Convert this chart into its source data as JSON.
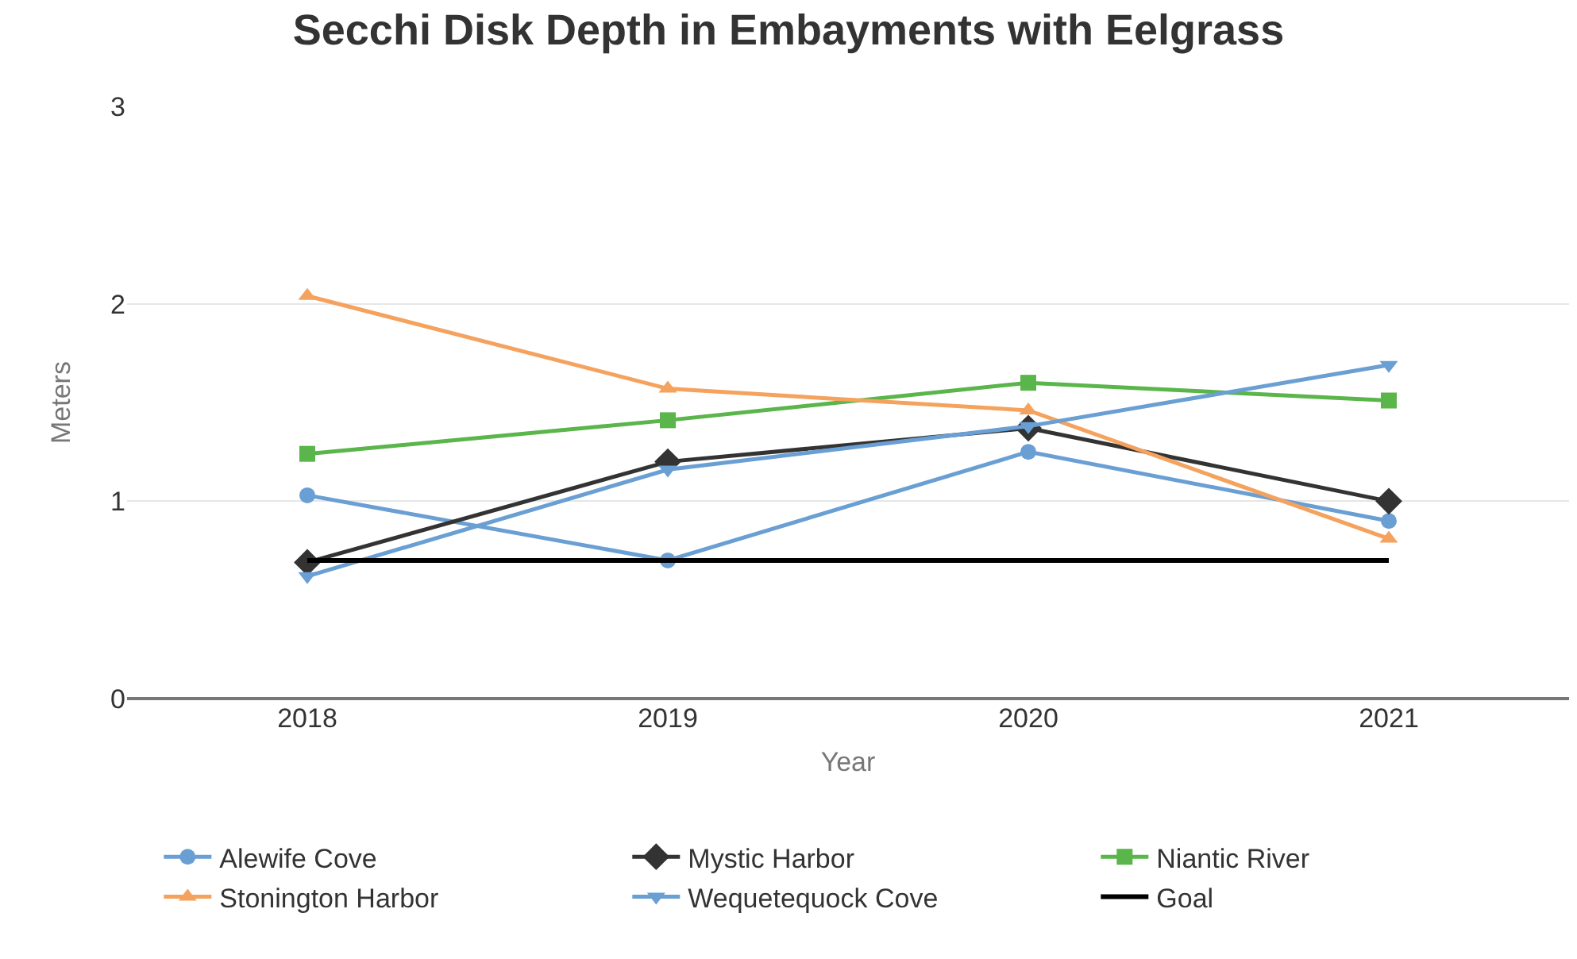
{
  "chart_data": {
    "type": "line",
    "title": "Secchi Disk Depth in Embayments with Eelgrass",
    "xlabel": "Year",
    "ylabel": "Meters",
    "categories": [
      "2018",
      "2019",
      "2020",
      "2021"
    ],
    "series": [
      {
        "name": "Alewife Cove",
        "color": "#6a9fd4",
        "marker": "circle",
        "values": [
          1.03,
          0.7,
          1.25,
          0.9
        ]
      },
      {
        "name": "Mystic Harbor",
        "color": "#333333",
        "marker": "diamond",
        "values": [
          0.69,
          1.2,
          1.37,
          1.0
        ]
      },
      {
        "name": "Niantic River",
        "color": "#5ab54b",
        "marker": "square",
        "values": [
          1.24,
          1.41,
          1.6,
          1.51
        ]
      },
      {
        "name": "Stonington Harbor",
        "color": "#f4a25e",
        "marker": "triangle",
        "values": [
          2.04,
          1.57,
          1.46,
          0.81
        ]
      },
      {
        "name": "Wequetequock Cove",
        "color": "#6a9fd4",
        "marker": "triangle-down",
        "values": [
          0.62,
          1.16,
          1.38,
          1.69
        ]
      },
      {
        "name": "Goal",
        "color": "#000000",
        "marker": "none",
        "values": [
          0.7,
          0.7,
          0.7,
          0.7
        ]
      }
    ],
    "ylim": [
      0,
      3
    ],
    "yticks": [
      0,
      1,
      2,
      3
    ],
    "grid": "y",
    "legend": "bottom"
  }
}
